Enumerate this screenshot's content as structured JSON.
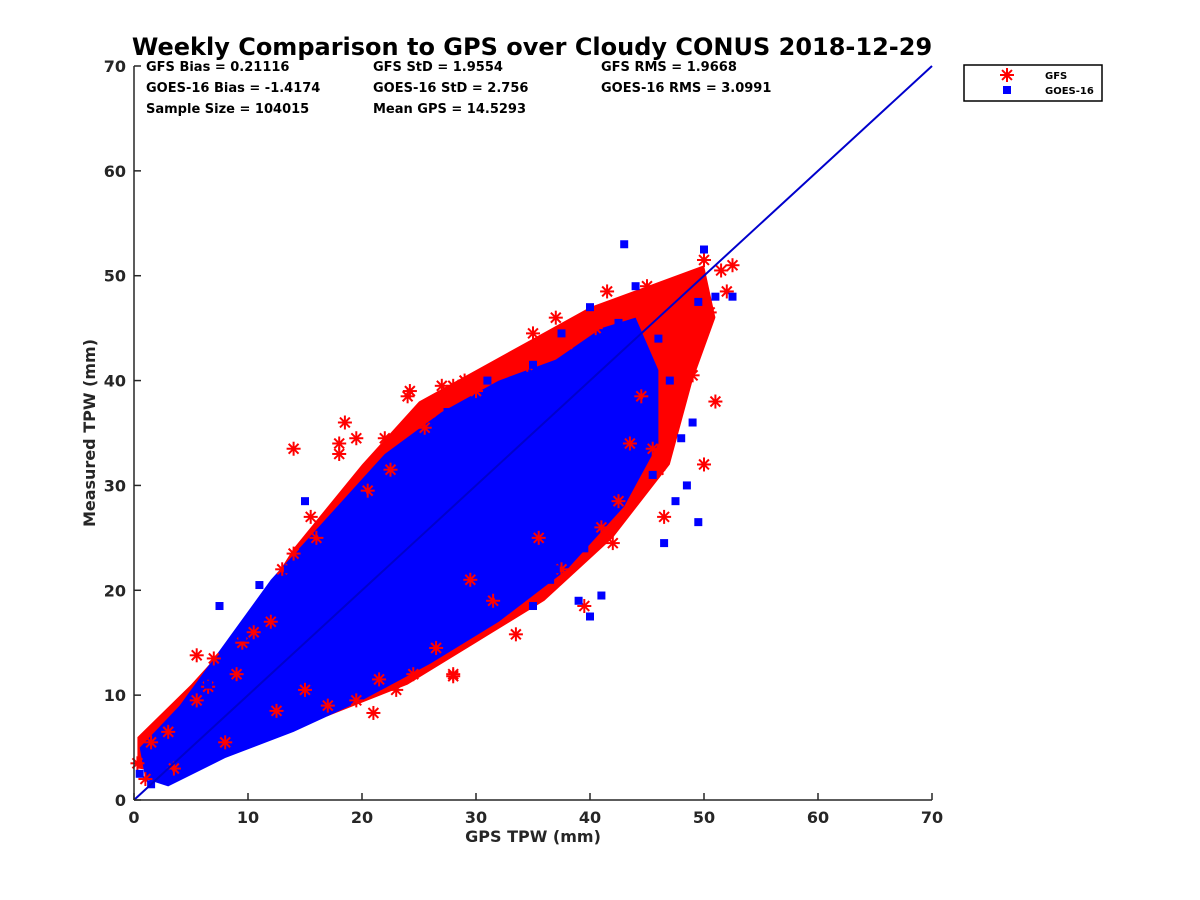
{
  "chart_data": {
    "type": "scatter",
    "title": "Weekly Comparison to GPS over Cloudy CONUS 2018-12-29",
    "xlabel": "GPS TPW (mm)",
    "ylabel": "Measured TPW (mm)",
    "xlim": [
      0,
      70
    ],
    "ylim": [
      0,
      70
    ],
    "xticks": [
      "0",
      "10",
      "20",
      "30",
      "40",
      "50",
      "60",
      "70"
    ],
    "yticks": [
      "0",
      "10",
      "20",
      "30",
      "40",
      "50",
      "60",
      "70"
    ],
    "grid": false,
    "legend_position": "outside top-right",
    "stats": [
      [
        "GFS Bias = 0.21116",
        "GFS StD = 1.9554",
        "GFS RMS = 1.9668"
      ],
      [
        "GOES-16 Bias = -1.4174",
        "GOES-16 StD = 2.756",
        "GOES-16 RMS = 3.0991"
      ],
      [
        "Sample Size = 104015",
        "Mean GPS = 14.5293",
        ""
      ]
    ],
    "reference_line": {
      "x": [
        0,
        70
      ],
      "y": [
        0,
        70
      ],
      "color": "#0000cc"
    },
    "series": [
      {
        "name": "GFS",
        "marker": "asterisk",
        "color": "#ff0000",
        "points": [
          [
            0.3,
            3.5
          ],
          [
            1.5,
            5.5
          ],
          [
            3.0,
            6.5
          ],
          [
            5.5,
            9.5
          ],
          [
            5.5,
            13.8
          ],
          [
            7.0,
            13.5
          ],
          [
            9.5,
            15.0
          ],
          [
            13.0,
            22.0
          ],
          [
            14.0,
            23.5
          ],
          [
            14.0,
            33.5
          ],
          [
            15.5,
            27.0
          ],
          [
            18.0,
            33.0
          ],
          [
            18.0,
            34.0
          ],
          [
            18.5,
            36.0
          ],
          [
            19.5,
            34.5
          ],
          [
            21.0,
            8.3
          ],
          [
            20.5,
            29.5
          ],
          [
            22.0,
            34.5
          ],
          [
            24.0,
            38.5
          ],
          [
            24.2,
            39.0
          ],
          [
            26.0,
            37.0
          ],
          [
            27.0,
            39.5
          ],
          [
            28.0,
            12.0
          ],
          [
            28.0,
            39.5
          ],
          [
            29.0,
            40.0
          ],
          [
            31.0,
            40.5
          ],
          [
            33.5,
            42.0
          ],
          [
            35.0,
            44.5
          ],
          [
            37.0,
            46.0
          ],
          [
            41.5,
            48.5
          ],
          [
            42.0,
            24.5
          ],
          [
            42.5,
            28.5
          ],
          [
            44.0,
            47.0
          ],
          [
            45.0,
            49.0
          ],
          [
            46.0,
            31.5
          ],
          [
            46.5,
            27.0
          ],
          [
            48.0,
            44.5
          ],
          [
            49.0,
            40.5
          ],
          [
            50.0,
            32.0
          ],
          [
            50.0,
            51.5
          ],
          [
            50.5,
            46.5
          ],
          [
            51.0,
            38.0
          ],
          [
            51.5,
            50.5
          ],
          [
            52.5,
            51.0
          ],
          [
            52.0,
            48.5
          ],
          [
            39.5,
            18.5
          ],
          [
            33.5,
            15.8
          ],
          [
            28.0,
            11.8
          ],
          [
            24.5,
            12.0
          ],
          [
            23.0,
            10.5
          ],
          [
            19.5,
            9.5
          ],
          [
            17.0,
            9.0
          ],
          [
            12.5,
            8.5
          ],
          [
            8.0,
            5.5
          ],
          [
            3.5,
            3.0
          ],
          [
            1.0,
            2.0
          ],
          [
            10.5,
            16.0
          ],
          [
            16.0,
            25.0
          ],
          [
            22.5,
            31.5
          ],
          [
            25.5,
            35.5
          ],
          [
            30.0,
            39.0
          ],
          [
            34.5,
            41.5
          ],
          [
            38.0,
            43.5
          ],
          [
            40.5,
            45.0
          ],
          [
            43.5,
            34.0
          ],
          [
            45.5,
            33.5
          ],
          [
            47.0,
            35.0
          ],
          [
            41.0,
            26.0
          ],
          [
            37.5,
            22.0
          ],
          [
            31.5,
            19.0
          ],
          [
            26.5,
            14.5
          ],
          [
            21.5,
            11.5
          ],
          [
            15.0,
            10.5
          ],
          [
            6.5,
            10.8
          ],
          [
            9.0,
            12.0
          ],
          [
            12.0,
            17.0
          ],
          [
            44.5,
            38.5
          ],
          [
            47.5,
            42.0
          ],
          [
            49.5,
            49.5
          ],
          [
            29.5,
            21.0
          ],
          [
            35.5,
            25.0
          ]
        ]
      },
      {
        "name": "GOES-16",
        "marker": "square",
        "color": "#0000ff",
        "points": [
          [
            0.5,
            2.5
          ],
          [
            2.0,
            3.0
          ],
          [
            3.0,
            2.5
          ],
          [
            5.0,
            5.5
          ],
          [
            7.5,
            18.5
          ],
          [
            11.0,
            20.5
          ],
          [
            11.5,
            19.0
          ],
          [
            13.5,
            22.0
          ],
          [
            15.0,
            28.5
          ],
          [
            16.5,
            12.5
          ],
          [
            20.0,
            13.0
          ],
          [
            22.0,
            19.5
          ],
          [
            26.0,
            16.0
          ],
          [
            27.5,
            37.0
          ],
          [
            30.0,
            19.0
          ],
          [
            32.0,
            19.5
          ],
          [
            33.5,
            39.5
          ],
          [
            35.0,
            18.5
          ],
          [
            37.0,
            22.0
          ],
          [
            39.0,
            19.0
          ],
          [
            40.0,
            17.5
          ],
          [
            41.0,
            19.5
          ],
          [
            42.5,
            34.0
          ],
          [
            43.0,
            53.0
          ],
          [
            44.0,
            49.0
          ],
          [
            45.0,
            38.0
          ],
          [
            46.5,
            24.5
          ],
          [
            47.5,
            28.5
          ],
          [
            48.0,
            34.5
          ],
          [
            49.0,
            36.0
          ],
          [
            50.0,
            52.5
          ],
          [
            51.0,
            48.0
          ],
          [
            52.5,
            48.0
          ],
          [
            49.5,
            26.5
          ],
          [
            42.5,
            45.5
          ],
          [
            40.0,
            47.0
          ],
          [
            37.5,
            44.5
          ],
          [
            35.0,
            41.5
          ],
          [
            31.0,
            40.0
          ],
          [
            25.5,
            33.5
          ],
          [
            20.0,
            29.0
          ],
          [
            16.5,
            25.5
          ],
          [
            13.0,
            21.0
          ],
          [
            9.5,
            15.5
          ],
          [
            6.5,
            11.0
          ],
          [
            4.0,
            7.0
          ],
          [
            2.5,
            4.5
          ],
          [
            1.5,
            1.5
          ],
          [
            46.0,
            44.0
          ],
          [
            44.5,
            40.5
          ],
          [
            38.5,
            33.0
          ],
          [
            34.0,
            26.5
          ],
          [
            28.0,
            22.5
          ],
          [
            23.0,
            17.0
          ],
          [
            18.0,
            12.5
          ],
          [
            14.0,
            8.5
          ],
          [
            10.0,
            6.5
          ],
          [
            6.0,
            3.5
          ],
          [
            49.5,
            47.5
          ],
          [
            47.0,
            40.0
          ],
          [
            43.0,
            41.5
          ],
          [
            36.0,
            35.5
          ],
          [
            30.5,
            30.0
          ],
          [
            26.0,
            26.0
          ],
          [
            21.0,
            21.5
          ],
          [
            17.0,
            17.0
          ],
          [
            12.0,
            12.5
          ],
          [
            8.0,
            8.0
          ],
          [
            48.5,
            30.0
          ],
          [
            45.5,
            31.0
          ],
          [
            39.5,
            24.0
          ],
          [
            36.5,
            21.0
          ]
        ]
      }
    ]
  },
  "legend": {
    "entries": [
      {
        "label": "GFS",
        "marker": "asterisk",
        "color": "#ff0000"
      },
      {
        "label": "GOES-16",
        "marker": "square",
        "color": "#0000ff"
      }
    ]
  }
}
